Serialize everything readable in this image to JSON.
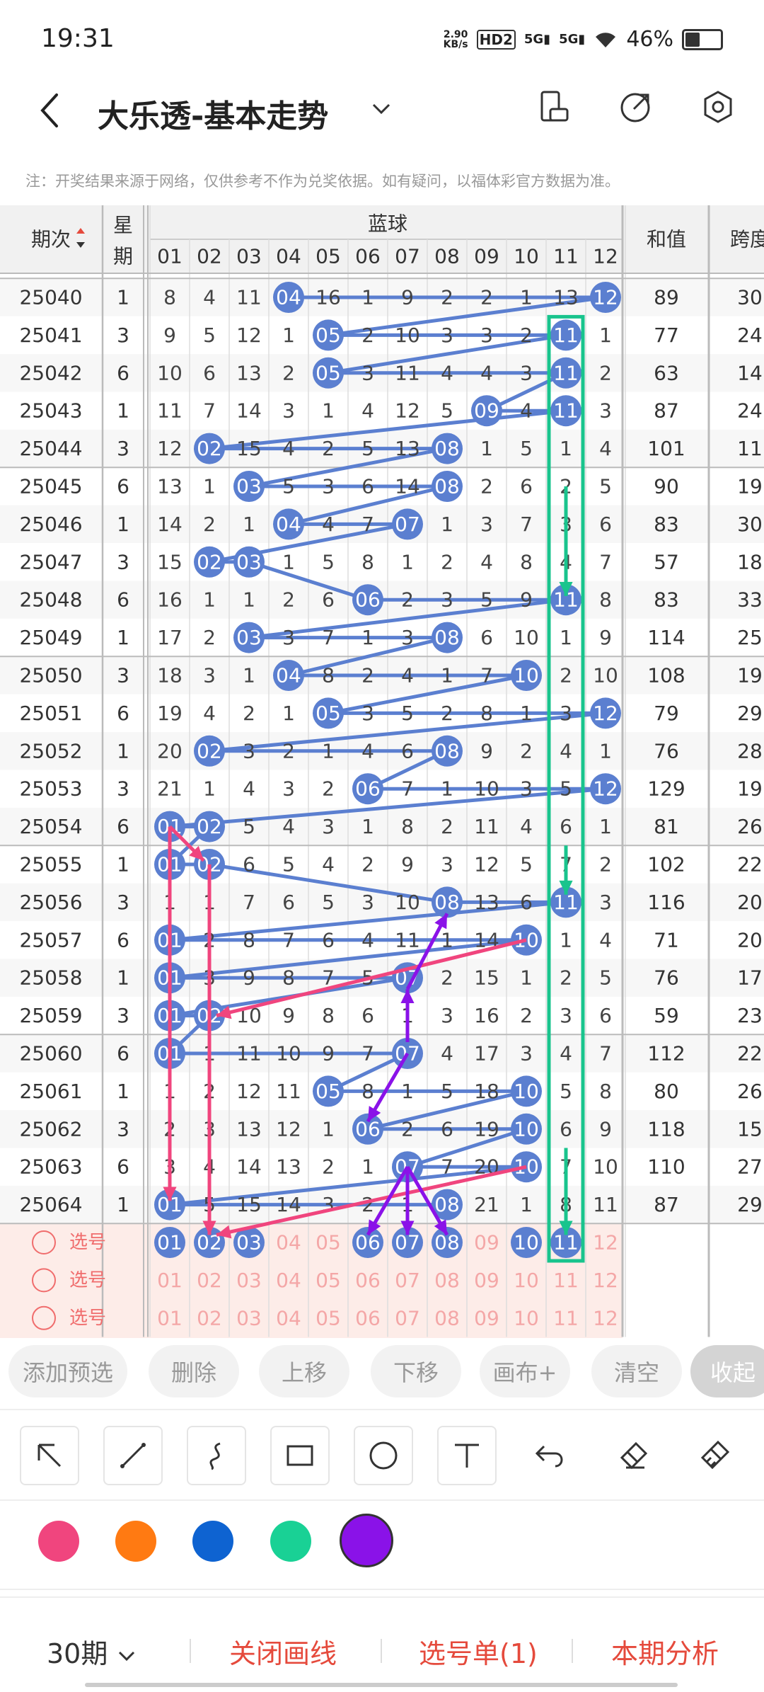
{
  "status_bar": {
    "time": "19:31",
    "net_speed_value": "2.90",
    "net_speed_unit": "KB/s",
    "hd_label": "HD2",
    "sig1": "5G",
    "sig2": "5G",
    "battery": "46%",
    "battery_level": 0.46
  },
  "header": {
    "title": "大乐透-基本走势",
    "notice": "注：开奖结果来源于网络，仅供参考不作为兑奖依据。如有疑问，以福体彩官方数据为准。"
  },
  "table": {
    "col_issue": "期次",
    "col_weekday_top": "星",
    "col_weekday_bottom": "期",
    "group_label": "蓝球",
    "col_sum": "和值",
    "col_span": "跨度",
    "ball_numbers": [
      "01",
      "02",
      "03",
      "04",
      "05",
      "06",
      "07",
      "08",
      "09",
      "10",
      "11",
      "12"
    ],
    "rows": [
      {
        "issue": "25040",
        "week": "1",
        "cells": [
          "8",
          "4",
          "11",
          "04",
          "16",
          "1",
          "9",
          "2",
          "2",
          "1",
          "13",
          "12"
        ],
        "hit": [
          3,
          11
        ],
        "sum": "89",
        "span": "30"
      },
      {
        "issue": "25041",
        "week": "3",
        "cells": [
          "9",
          "5",
          "12",
          "1",
          "05",
          "2",
          "10",
          "3",
          "3",
          "2",
          "11",
          "1"
        ],
        "hit": [
          4,
          10
        ],
        "sum": "77",
        "span": "24"
      },
      {
        "issue": "25042",
        "week": "6",
        "cells": [
          "10",
          "6",
          "13",
          "2",
          "05",
          "3",
          "11",
          "4",
          "4",
          "3",
          "11",
          "2"
        ],
        "hit": [
          4,
          10
        ],
        "sum": "63",
        "span": "14"
      },
      {
        "issue": "25043",
        "week": "1",
        "cells": [
          "11",
          "7",
          "14",
          "3",
          "1",
          "4",
          "12",
          "5",
          "09",
          "4",
          "11",
          "3"
        ],
        "hit": [
          8,
          10
        ],
        "sum": "87",
        "span": "24"
      },
      {
        "issue": "25044",
        "week": "3",
        "cells": [
          "12",
          "02",
          "15",
          "4",
          "2",
          "5",
          "13",
          "08",
          "1",
          "5",
          "1",
          "4"
        ],
        "hit": [
          1,
          7
        ],
        "sum": "101",
        "span": "11"
      },
      {
        "issue": "25045",
        "week": "6",
        "cells": [
          "13",
          "1",
          "03",
          "5",
          "3",
          "6",
          "14",
          "08",
          "2",
          "6",
          "2",
          "5"
        ],
        "hit": [
          2,
          7
        ],
        "sum": "90",
        "span": "19"
      },
      {
        "issue": "25046",
        "week": "1",
        "cells": [
          "14",
          "2",
          "1",
          "04",
          "4",
          "7",
          "07",
          "1",
          "3",
          "7",
          "3",
          "6"
        ],
        "hit": [
          3,
          6
        ],
        "sum": "83",
        "span": "30"
      },
      {
        "issue": "25047",
        "week": "3",
        "cells": [
          "15",
          "02",
          "03",
          "1",
          "5",
          "8",
          "1",
          "2",
          "4",
          "8",
          "4",
          "7"
        ],
        "hit": [
          1,
          2
        ],
        "sum": "57",
        "span": "18"
      },
      {
        "issue": "25048",
        "week": "6",
        "cells": [
          "16",
          "1",
          "1",
          "2",
          "6",
          "06",
          "2",
          "3",
          "5",
          "9",
          "11",
          "8"
        ],
        "hit": [
          5,
          10
        ],
        "sum": "83",
        "span": "33"
      },
      {
        "issue": "25049",
        "week": "1",
        "cells": [
          "17",
          "2",
          "03",
          "3",
          "7",
          "1",
          "3",
          "08",
          "6",
          "10",
          "1",
          "9"
        ],
        "hit": [
          2,
          7
        ],
        "sum": "114",
        "span": "25"
      },
      {
        "issue": "25050",
        "week": "3",
        "cells": [
          "18",
          "3",
          "1",
          "04",
          "8",
          "2",
          "4",
          "1",
          "7",
          "10",
          "2",
          "10"
        ],
        "hit": [
          3,
          9
        ],
        "sum": "108",
        "span": "19"
      },
      {
        "issue": "25051",
        "week": "6",
        "cells": [
          "19",
          "4",
          "2",
          "1",
          "05",
          "3",
          "5",
          "2",
          "8",
          "1",
          "3",
          "12"
        ],
        "hit": [
          4,
          11
        ],
        "sum": "79",
        "span": "29"
      },
      {
        "issue": "25052",
        "week": "1",
        "cells": [
          "20",
          "02",
          "3",
          "2",
          "1",
          "4",
          "6",
          "08",
          "9",
          "2",
          "4",
          "1"
        ],
        "hit": [
          1,
          7
        ],
        "sum": "76",
        "span": "28"
      },
      {
        "issue": "25053",
        "week": "3",
        "cells": [
          "21",
          "1",
          "4",
          "3",
          "2",
          "06",
          "7",
          "1",
          "10",
          "3",
          "5",
          "12"
        ],
        "hit": [
          5,
          11
        ],
        "sum": "129",
        "span": "19"
      },
      {
        "issue": "25054",
        "week": "6",
        "cells": [
          "01",
          "02",
          "5",
          "4",
          "3",
          "1",
          "8",
          "2",
          "11",
          "4",
          "6",
          "1"
        ],
        "hit": [
          0,
          1
        ],
        "sum": "81",
        "span": "26"
      },
      {
        "issue": "25055",
        "week": "1",
        "cells": [
          "01",
          "02",
          "6",
          "5",
          "4",
          "2",
          "9",
          "3",
          "12",
          "5",
          "7",
          "2"
        ],
        "hit": [
          0,
          1
        ],
        "sum": "102",
        "span": "22"
      },
      {
        "issue": "25056",
        "week": "3",
        "cells": [
          "1",
          "1",
          "7",
          "6",
          "5",
          "3",
          "10",
          "08",
          "13",
          "6",
          "11",
          "3"
        ],
        "hit": [
          7,
          10
        ],
        "sum": "116",
        "span": "20"
      },
      {
        "issue": "25057",
        "week": "6",
        "cells": [
          "01",
          "2",
          "8",
          "7",
          "6",
          "4",
          "11",
          "1",
          "14",
          "10",
          "1",
          "4"
        ],
        "hit": [
          0,
          9
        ],
        "sum": "71",
        "span": "20"
      },
      {
        "issue": "25058",
        "week": "1",
        "cells": [
          "01",
          "3",
          "9",
          "8",
          "7",
          "5",
          "07",
          "2",
          "15",
          "1",
          "2",
          "5"
        ],
        "hit": [
          0,
          6
        ],
        "sum": "76",
        "span": "17"
      },
      {
        "issue": "25059",
        "week": "3",
        "cells": [
          "01",
          "02",
          "10",
          "9",
          "8",
          "6",
          "1",
          "3",
          "16",
          "2",
          "3",
          "6"
        ],
        "hit": [
          0,
          1
        ],
        "sum": "59",
        "span": "23"
      },
      {
        "issue": "25060",
        "week": "6",
        "cells": [
          "01",
          "1",
          "11",
          "10",
          "9",
          "7",
          "07",
          "4",
          "17",
          "3",
          "4",
          "7"
        ],
        "hit": [
          0,
          6
        ],
        "sum": "112",
        "span": "22"
      },
      {
        "issue": "25061",
        "week": "1",
        "cells": [
          "1",
          "2",
          "12",
          "11",
          "05",
          "8",
          "1",
          "5",
          "18",
          "10",
          "5",
          "8"
        ],
        "hit": [
          4,
          9
        ],
        "sum": "80",
        "span": "26"
      },
      {
        "issue": "25062",
        "week": "3",
        "cells": [
          "2",
          "3",
          "13",
          "12",
          "1",
          "06",
          "2",
          "6",
          "19",
          "10",
          "6",
          "9"
        ],
        "hit": [
          5,
          9
        ],
        "sum": "118",
        "span": "15"
      },
      {
        "issue": "25063",
        "week": "6",
        "cells": [
          "3",
          "4",
          "14",
          "13",
          "2",
          "1",
          "07",
          "7",
          "20",
          "10",
          "7",
          "10"
        ],
        "hit": [
          6,
          9
        ],
        "sum": "110",
        "span": "27"
      },
      {
        "issue": "25064",
        "week": "1",
        "cells": [
          "01",
          "5",
          "15",
          "14",
          "3",
          "2",
          "1",
          "08",
          "21",
          "1",
          "8",
          "11"
        ],
        "hit": [
          0,
          7
        ],
        "sum": "87",
        "span": "29"
      }
    ],
    "pick_label": "选号",
    "pick_rows": [
      {
        "selected": [
          0,
          1,
          2,
          5,
          6,
          7,
          9,
          10
        ]
      },
      {
        "selected": []
      },
      {
        "selected": []
      }
    ]
  },
  "actions": {
    "add_preselect": "添加预选",
    "delete": "删除",
    "move_up": "上移",
    "move_down": "下移",
    "canvas_plus": "画布+",
    "clear": "清空",
    "collapse": "收起"
  },
  "draw_tools": [
    "select-arrow-icon",
    "line-icon",
    "curve-icon",
    "rectangle-icon",
    "circle-icon",
    "text-icon",
    "undo-icon",
    "eraser-icon",
    "brush-clean-icon"
  ],
  "colors": {
    "pink": "#f0457e",
    "orange": "#ff7a12",
    "blue": "#0e63d1",
    "green": "#19d195",
    "purple": "#8a12e8",
    "ball_blue": "#5b7fd0",
    "line_blue": "#5b7fd0",
    "rect_green": "#19c48d",
    "pick_red": "#f06d6d",
    "pick_bg": "#fdece8",
    "accent_red": "#e54a3c"
  },
  "bottom_bar": {
    "period": "30期",
    "close_lines": "关闭画线",
    "pick_list": "选号单(1)",
    "analysis": "本期分析"
  }
}
